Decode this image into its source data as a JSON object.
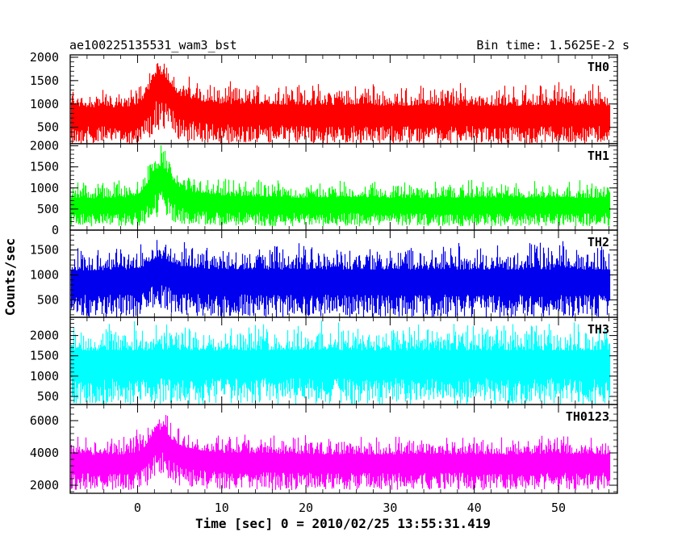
{
  "chart_data": {
    "type": "line",
    "title_left": "ae100225135531_wam3_bst",
    "title_right": "Bin time: 1.5625E-2 s",
    "ylabel": "Counts/sec",
    "xlabel": "Time [sec] 0 = 2010/02/25 13:55:31.419",
    "xlim": [
      -8.0,
      57.0
    ],
    "data_xrange": [
      -7.9,
      56.0
    ],
    "x_ticks": [
      0,
      10,
      20,
      30,
      40,
      50
    ],
    "grid": false,
    "panels": [
      {
        "name": "TH0",
        "color": "#ff0000",
        "ylim": [
          150,
          2050
        ],
        "y_ticks": [
          500,
          1000,
          1500,
          2000
        ],
        "series": {
          "x": [
            -7,
            -5,
            -3,
            -1,
            0,
            1,
            2,
            3,
            4,
            5,
            7,
            10,
            15,
            20,
            25,
            30,
            35,
            40,
            45,
            50,
            55
          ],
          "mean": [
            720,
            720,
            720,
            730,
            780,
            950,
            1400,
            1450,
            1200,
            950,
            850,
            780,
            760,
            740,
            740,
            730,
            730,
            730,
            730,
            730,
            730
          ],
          "min": [
            150,
            150,
            150,
            150,
            160,
            200,
            400,
            480,
            320,
            200,
            170,
            160,
            150,
            150,
            150,
            150,
            150,
            150,
            150,
            150,
            150
          ],
          "max": [
            1450,
            1400,
            1400,
            1450,
            1500,
            1700,
            2050,
            2050,
            1850,
            1650,
            1600,
            1500,
            1550,
            1500,
            1550,
            1500,
            1500,
            1500,
            1500,
            1550,
            1500
          ]
        }
      },
      {
        "name": "TH1",
        "color": "#00ff00",
        "ylim": [
          0,
          2050
        ],
        "y_ticks": [
          0,
          500,
          1000,
          1500,
          2000
        ],
        "series": {
          "x": [
            -7,
            -5,
            -3,
            -1,
            0,
            1,
            2,
            3,
            4,
            5,
            7,
            10,
            15,
            20,
            25,
            30,
            35,
            40,
            45,
            50,
            55
          ],
          "mean": [
            560,
            560,
            560,
            570,
            620,
            800,
            1200,
            1250,
            1000,
            780,
            680,
            620,
            590,
            580,
            580,
            570,
            570,
            570,
            570,
            570,
            570
          ],
          "min": [
            90,
            90,
            90,
            90,
            100,
            150,
            280,
            320,
            220,
            150,
            110,
            100,
            90,
            90,
            90,
            90,
            90,
            90,
            90,
            90,
            90
          ],
          "max": [
            1250,
            1200,
            1250,
            1250,
            1350,
            1600,
            2000,
            2050,
            1700,
            1450,
            1350,
            1250,
            1250,
            1200,
            1250,
            1200,
            1200,
            1250,
            1200,
            1250,
            1200
          ]
        }
      },
      {
        "name": "TH2",
        "color": "#0000ee",
        "ylim": [
          150,
          1900
        ],
        "y_ticks": [
          500,
          1000,
          1500
        ],
        "series": {
          "x": [
            -7,
            -5,
            -3,
            -1,
            0,
            1,
            2,
            3,
            4,
            5,
            7,
            10,
            15,
            20,
            25,
            30,
            35,
            40,
            45,
            50,
            55
          ],
          "mean": [
            850,
            850,
            850,
            860,
            880,
            950,
            1100,
            1100,
            1000,
            920,
            880,
            860,
            850,
            850,
            850,
            850,
            850,
            850,
            850,
            850,
            850
          ],
          "min": [
            150,
            150,
            150,
            150,
            160,
            180,
            250,
            270,
            220,
            180,
            160,
            150,
            150,
            150,
            150,
            150,
            150,
            150,
            150,
            150,
            150
          ],
          "max": [
            1650,
            1650,
            1650,
            1700,
            1700,
            1750,
            1850,
            1850,
            1800,
            1750,
            1700,
            1700,
            1700,
            1700,
            1700,
            1700,
            1700,
            1700,
            1700,
            1700,
            1700
          ]
        }
      },
      {
        "name": "TH3",
        "color": "#00ffff",
        "ylim": [
          300,
          2450
        ],
        "y_ticks": [
          500,
          1000,
          1500,
          2000
        ],
        "series": {
          "x": [
            -7,
            -5,
            -3,
            -1,
            0,
            1,
            2,
            3,
            4,
            5,
            7,
            10,
            15,
            20,
            25,
            30,
            35,
            40,
            45,
            50,
            55
          ],
          "mean": [
            1300,
            1300,
            1300,
            1300,
            1300,
            1300,
            1320,
            1320,
            1310,
            1300,
            1300,
            1300,
            1300,
            1300,
            1300,
            1300,
            1300,
            1300,
            1300,
            1300,
            1300
          ],
          "min": [
            300,
            300,
            300,
            300,
            300,
            300,
            300,
            300,
            300,
            300,
            300,
            300,
            300,
            300,
            300,
            300,
            300,
            300,
            300,
            300,
            300
          ],
          "max": [
            2400,
            2400,
            2400,
            2400,
            2400,
            2400,
            2400,
            2400,
            2400,
            2400,
            2400,
            2400,
            2400,
            2400,
            2400,
            2400,
            2400,
            2400,
            2400,
            2400,
            2400
          ]
        }
      },
      {
        "name": "TH0123",
        "color": "#ff00ff",
        "ylim": [
          1500,
          7000
        ],
        "y_ticks": [
          2000,
          4000,
          6000
        ],
        "series": {
          "x": [
            -7,
            -5,
            -3,
            -1,
            0,
            1,
            2,
            3,
            4,
            5,
            7,
            10,
            15,
            20,
            25,
            30,
            35,
            40,
            45,
            50,
            55
          ],
          "mean": [
            3300,
            3300,
            3300,
            3350,
            3450,
            3800,
            4700,
            4800,
            4200,
            3800,
            3600,
            3450,
            3400,
            3350,
            3350,
            3350,
            3350,
            3350,
            3350,
            3350,
            3350
          ],
          "min": [
            1700,
            1700,
            1700,
            1700,
            1750,
            1900,
            2500,
            2700,
            2200,
            1900,
            1800,
            1750,
            1700,
            1700,
            1700,
            1700,
            1700,
            1700,
            1700,
            1700,
            1700
          ],
          "max": [
            5200,
            5200,
            5200,
            5300,
            5500,
            6000,
            7000,
            7000,
            6300,
            5800,
            5500,
            5300,
            5300,
            5200,
            5200,
            5200,
            5200,
            5200,
            5200,
            5300,
            5200
          ]
        }
      }
    ]
  }
}
